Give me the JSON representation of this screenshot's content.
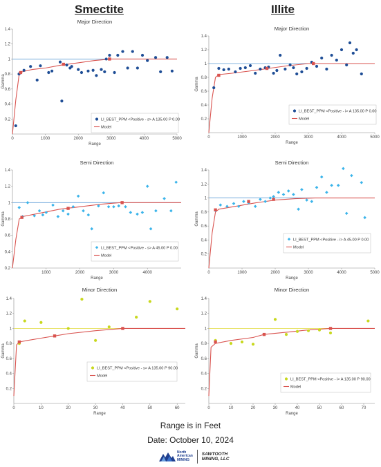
{
  "headers": {
    "left": "Smectite",
    "right": "Illite"
  },
  "footer": {
    "range_note": "Range is in Feet",
    "date": "Date: October 10, 2024"
  },
  "logos": {
    "left_line1": "North",
    "left_line2": "American",
    "left_line3": "MINING",
    "right_line1": "SAWTOOTH",
    "right_line2": "MINING, LLC"
  },
  "colors": {
    "blue_major": "#1f4e96",
    "cyan_semi": "#3bb4ea",
    "yellow_minor": "#c8d81e",
    "model": "#d9534f",
    "sill_blue": "#5b9bd5",
    "sill_yellow": "#e6e05a"
  },
  "chart_data": [
    {
      "type": "scatter",
      "panel": "smectite-major",
      "title": "Major Direction",
      "xlabel": "Range",
      "ylabel": "Gamma",
      "xlim": [
        0,
        5000
      ],
      "ylim": [
        0,
        1.4
      ],
      "xticks": [
        0,
        1000,
        2000,
        3000,
        4000,
        5000
      ],
      "yticks": [
        0.2,
        0.4,
        0.6,
        0.8,
        1,
        1.2,
        1.4
      ],
      "marker": "circle",
      "color": "#1f4e96",
      "sill": 1,
      "sill_color": "#5b9bd5",
      "legend": {
        "series": "LI_BEST_PPM <Positive - s> A 135.00 P 0.00",
        "model": "Model"
      },
      "points": [
        [
          100,
          0.11
        ],
        [
          200,
          0.8
        ],
        [
          350,
          0.85
        ],
        [
          550,
          0.9
        ],
        [
          750,
          0.72
        ],
        [
          850,
          0.91
        ],
        [
          1100,
          0.82
        ],
        [
          1200,
          0.84
        ],
        [
          1450,
          0.96
        ],
        [
          1500,
          0.44
        ],
        [
          1650,
          0.92
        ],
        [
          1750,
          0.88
        ],
        [
          1800,
          0.9
        ],
        [
          2000,
          0.86
        ],
        [
          2100,
          0.82
        ],
        [
          2300,
          0.84
        ],
        [
          2450,
          0.85
        ],
        [
          2550,
          0.78
        ],
        [
          2700,
          0.86
        ],
        [
          2800,
          0.83
        ],
        [
          2850,
          1.0
        ],
        [
          2950,
          1.05
        ],
        [
          3100,
          0.82
        ],
        [
          3200,
          1.05
        ],
        [
          3350,
          1.1
        ],
        [
          3500,
          0.88
        ],
        [
          3650,
          1.1
        ],
        [
          3800,
          0.88
        ],
        [
          3950,
          1.05
        ],
        [
          4100,
          0.98
        ],
        [
          4350,
          1.02
        ],
        [
          4500,
          0.83
        ],
        [
          4700,
          1.02
        ],
        [
          4850,
          0.84
        ]
      ],
      "model": [
        [
          0,
          0
        ],
        [
          100,
          0.45
        ],
        [
          200,
          0.78
        ],
        [
          300,
          0.83
        ],
        [
          600,
          0.86
        ],
        [
          1000,
          0.88
        ],
        [
          1500,
          0.92
        ],
        [
          2000,
          0.95
        ],
        [
          2500,
          0.98
        ],
        [
          3000,
          1.0
        ],
        [
          5000,
          1.0
        ]
      ],
      "model_markers": [
        [
          250,
          0.82
        ],
        [
          1550,
          0.93
        ],
        [
          2950,
          1.0
        ]
      ]
    },
    {
      "type": "scatter",
      "panel": "illite-major",
      "title": "Major Direction",
      "xlabel": "Range",
      "ylabel": "Gamma",
      "xlim": [
        0,
        5000
      ],
      "ylim": [
        0,
        1.4
      ],
      "xticks": [
        0,
        1000,
        2000,
        3000,
        4000,
        5000
      ],
      "yticks": [
        0.2,
        0.4,
        0.6,
        0.8,
        1,
        1.2,
        1.4
      ],
      "marker": "circle",
      "color": "#1f4e96",
      "sill": 1,
      "sill_color": "#5b9bd5",
      "legend": {
        "series": "LI_BEST_PPM <Positive - i> A 135.00 P 0.00",
        "model": "Model"
      },
      "points": [
        [
          150,
          0.65
        ],
        [
          300,
          0.93
        ],
        [
          450,
          0.91
        ],
        [
          600,
          0.92
        ],
        [
          800,
          0.88
        ],
        [
          950,
          0.93
        ],
        [
          1100,
          0.94
        ],
        [
          1250,
          0.97
        ],
        [
          1400,
          0.86
        ],
        [
          1550,
          0.92
        ],
        [
          1700,
          0.94
        ],
        [
          1800,
          0.95
        ],
        [
          1950,
          0.86
        ],
        [
          2050,
          0.9
        ],
        [
          2150,
          1.12
        ],
        [
          2300,
          0.92
        ],
        [
          2450,
          0.98
        ],
        [
          2550,
          0.94
        ],
        [
          2650,
          0.85
        ],
        [
          2800,
          0.88
        ],
        [
          2950,
          0.93
        ],
        [
          3100,
          1.02
        ],
        [
          3250,
          0.96
        ],
        [
          3400,
          1.08
        ],
        [
          3550,
          0.92
        ],
        [
          3700,
          1.12
        ],
        [
          3850,
          1.05
        ],
        [
          4000,
          1.2
        ],
        [
          4150,
          0.98
        ],
        [
          4250,
          1.3
        ],
        [
          4350,
          1.15
        ],
        [
          4450,
          1.2
        ],
        [
          4600,
          0.85
        ]
      ],
      "model": [
        [
          0,
          0
        ],
        [
          100,
          0.5
        ],
        [
          200,
          0.8
        ],
        [
          300,
          0.84
        ],
        [
          700,
          0.86
        ],
        [
          1200,
          0.89
        ],
        [
          1800,
          0.93
        ],
        [
          2400,
          0.97
        ],
        [
          3000,
          1.0
        ],
        [
          5000,
          1.0
        ]
      ],
      "model_markers": [
        [
          300,
          0.83
        ],
        [
          1750,
          0.93
        ],
        [
          3150,
          1.0
        ]
      ]
    },
    {
      "type": "scatter",
      "panel": "smectite-semi",
      "title": "Semi Direction",
      "xlabel": "Range",
      "ylabel": "Gamma",
      "xlim": [
        0,
        5000
      ],
      "ylim": [
        0.2,
        1.4
      ],
      "xticks": [
        1000,
        2000,
        3000,
        4000
      ],
      "yticks": [
        0.2,
        0.4,
        0.6,
        0.8,
        1,
        1.2,
        1.4
      ],
      "marker": "diamond",
      "color": "#3bb4ea",
      "sill": 1,
      "sill_color": "#5b9bd5",
      "legend": {
        "series": "LI_BEST_PPM <Positive - s> A 45.00 P 0.00",
        "model": "Model"
      },
      "points": [
        [
          200,
          0.94
        ],
        [
          300,
          0.83
        ],
        [
          450,
          1.0
        ],
        [
          650,
          0.84
        ],
        [
          800,
          0.9
        ],
        [
          900,
          0.85
        ],
        [
          1000,
          0.88
        ],
        [
          1200,
          0.97
        ],
        [
          1350,
          0.83
        ],
        [
          1500,
          0.9
        ],
        [
          1650,
          0.86
        ],
        [
          1800,
          0.95
        ],
        [
          1950,
          1.08
        ],
        [
          2100,
          0.9
        ],
        [
          2250,
          0.85
        ],
        [
          2350,
          0.68
        ],
        [
          2550,
          0.96
        ],
        [
          2700,
          1.12
        ],
        [
          2850,
          0.95
        ],
        [
          3000,
          0.95
        ],
        [
          3150,
          0.96
        ],
        [
          3350,
          0.95
        ],
        [
          3500,
          0.88
        ],
        [
          3700,
          0.86
        ],
        [
          3850,
          0.88
        ],
        [
          4000,
          1.2
        ],
        [
          4100,
          0.68
        ],
        [
          4250,
          0.9
        ],
        [
          4500,
          1.05
        ],
        [
          4700,
          0.9
        ],
        [
          4850,
          1.25
        ]
      ],
      "model": [
        [
          0,
          0.2
        ],
        [
          100,
          0.55
        ],
        [
          200,
          0.8
        ],
        [
          300,
          0.83
        ],
        [
          800,
          0.87
        ],
        [
          1400,
          0.92
        ],
        [
          2000,
          0.95
        ],
        [
          2600,
          0.98
        ],
        [
          3200,
          1.0
        ],
        [
          5000,
          1.0
        ]
      ],
      "model_markers": [
        [
          280,
          0.82
        ],
        [
          1650,
          0.93
        ],
        [
          3250,
          1.0
        ]
      ]
    },
    {
      "type": "scatter",
      "panel": "illite-semi",
      "title": "Semi Direction",
      "xlabel": "Range",
      "ylabel": "Gamma",
      "xlim": [
        0,
        5000
      ],
      "ylim": [
        0,
        1.4
      ],
      "xticks": [
        0,
        1000,
        2000,
        3000,
        4000,
        5000
      ],
      "yticks": [
        0.2,
        0.4,
        0.6,
        0.8,
        1,
        1.2,
        1.4
      ],
      "marker": "diamond",
      "color": "#3bb4ea",
      "sill": 1,
      "sill_color": "#5b9bd5",
      "legend": {
        "series": "LI_BEST_PPM <Positive - i> A 45.00 P 0.00",
        "model": "Model"
      },
      "points": [
        [
          200,
          0.82
        ],
        [
          350,
          0.9
        ],
        [
          550,
          0.88
        ],
        [
          750,
          0.92
        ],
        [
          900,
          0.88
        ],
        [
          1050,
          0.95
        ],
        [
          1200,
          0.93
        ],
        [
          1400,
          0.88
        ],
        [
          1550,
          0.98
        ],
        [
          1700,
          0.95
        ],
        [
          1850,
          1.0
        ],
        [
          1950,
          1.02
        ],
        [
          2100,
          1.08
        ],
        [
          2250,
          1.05
        ],
        [
          2400,
          1.1
        ],
        [
          2550,
          1.05
        ],
        [
          2700,
          0.84
        ],
        [
          2800,
          1.12
        ],
        [
          2950,
          0.97
        ],
        [
          3100,
          0.95
        ],
        [
          3250,
          1.15
        ],
        [
          3400,
          1.3
        ],
        [
          3550,
          1.08
        ],
        [
          3700,
          1.18
        ],
        [
          3900,
          1.18
        ],
        [
          4050,
          1.42
        ],
        [
          4150,
          0.78
        ],
        [
          4300,
          1.32
        ],
        [
          4600,
          1.22
        ],
        [
          4700,
          0.72
        ]
      ],
      "model": [
        [
          0,
          0
        ],
        [
          100,
          0.5
        ],
        [
          200,
          0.8
        ],
        [
          300,
          0.84
        ],
        [
          800,
          0.88
        ],
        [
          1400,
          0.93
        ],
        [
          2000,
          0.97
        ],
        [
          2600,
          0.99
        ],
        [
          3200,
          1.0
        ],
        [
          5000,
          1.0
        ]
      ],
      "model_markers": [
        [
          200,
          0.83
        ],
        [
          1200,
          0.95
        ],
        [
          1950,
          0.98
        ]
      ]
    },
    {
      "type": "scatter",
      "panel": "smectite-minor",
      "title": "Minor Direction",
      "xlabel": "Range",
      "ylabel": "Gamma",
      "xlim": [
        0,
        63
      ],
      "ylim": [
        0,
        1.4
      ],
      "xticks": [
        0,
        10,
        20,
        30,
        40,
        50,
        60
      ],
      "yticks": [
        0.2,
        0.4,
        0.6,
        0.8,
        1,
        1.2,
        1.4
      ],
      "marker": "circle",
      "color": "#c8d81e",
      "sill": 1,
      "sill_color": "#e6e05a",
      "legend": {
        "series": "LI_BEST_PPM <Positive - s> A 135.00 P 90.00",
        "model": "Model"
      },
      "points": [
        [
          2,
          0.8
        ],
        [
          4,
          1.1
        ],
        [
          10,
          1.08
        ],
        [
          20,
          1.0
        ],
        [
          25,
          1.39
        ],
        [
          30,
          0.84
        ],
        [
          35,
          1.02
        ],
        [
          45,
          1.15
        ],
        [
          50,
          1.36
        ],
        [
          60,
          1.26
        ]
      ],
      "model": [
        [
          0,
          0.1
        ],
        [
          1,
          0.78
        ],
        [
          2,
          0.82
        ],
        [
          5,
          0.84
        ],
        [
          10,
          0.87
        ],
        [
          15,
          0.9
        ],
        [
          20,
          0.93
        ],
        [
          30,
          0.97
        ],
        [
          40,
          1.0
        ],
        [
          63,
          1.0
        ]
      ],
      "model_markers": [
        [
          2,
          0.82
        ],
        [
          15,
          0.9
        ],
        [
          40,
          1.0
        ]
      ]
    },
    {
      "type": "scatter",
      "panel": "illite-minor",
      "title": "Minor Direction",
      "xlabel": "Range",
      "ylabel": "Gamma",
      "xlim": [
        0,
        75
      ],
      "ylim": [
        0,
        1.4
      ],
      "xticks": [
        0,
        10,
        20,
        30,
        40,
        50,
        60,
        70
      ],
      "yticks": [
        0.2,
        0.4,
        0.6,
        0.8,
        1,
        1.2,
        1.4
      ],
      "marker": "circle",
      "color": "#c8d81e",
      "sill": 1,
      "sill_color": "#e6e05a",
      "legend": {
        "series": "LI_BEST_PPM <Positive - i> A 135.00 P 90.00",
        "model": "Model"
      },
      "points": [
        [
          3,
          0.84
        ],
        [
          10,
          0.8
        ],
        [
          15,
          0.82
        ],
        [
          20,
          0.79
        ],
        [
          25,
          0.92
        ],
        [
          30,
          1.12
        ],
        [
          35,
          0.92
        ],
        [
          40,
          0.96
        ],
        [
          45,
          0.97
        ],
        [
          50,
          0.98
        ],
        [
          55,
          0.94
        ],
        [
          72,
          1.1
        ]
      ],
      "model": [
        [
          0,
          0.1
        ],
        [
          1,
          0.75
        ],
        [
          3,
          0.8
        ],
        [
          10,
          0.84
        ],
        [
          20,
          0.88
        ],
        [
          25,
          0.92
        ],
        [
          35,
          0.95
        ],
        [
          45,
          0.98
        ],
        [
          55,
          1.0
        ],
        [
          75,
          1.0
        ]
      ],
      "model_markers": [
        [
          3,
          0.82
        ],
        [
          25,
          0.92
        ],
        [
          55,
          1.0
        ]
      ]
    }
  ]
}
